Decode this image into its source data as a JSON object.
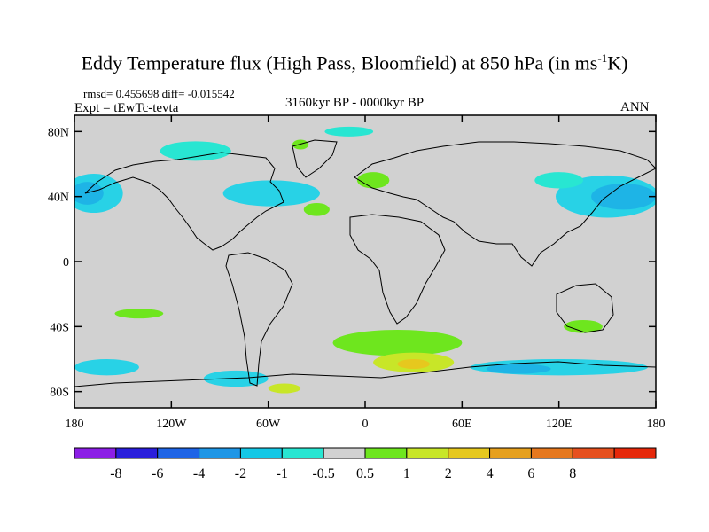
{
  "title": "Eddy Temperature flux (High Pass, Bloomfield) at 850 hPa (in ms",
  "title_sup": "-1",
  "title_end": "K)",
  "rmsd_text": "rmsd= 0.455698 diff= -0.015542",
  "expt_text": "Expt = tEwTc-tevta",
  "period_text": "3160kyr BP - 0000kyr BP",
  "season_text": "ANN",
  "map": {
    "lon_range": [
      -180,
      180
    ],
    "lat_range": [
      -90,
      90
    ],
    "lat_ticks": [
      {
        "lat": 80,
        "label": "80N"
      },
      {
        "lat": 40,
        "label": "40N"
      },
      {
        "lat": 0,
        "label": "0"
      },
      {
        "lat": -40,
        "label": "40S"
      },
      {
        "lat": -80,
        "label": "80S"
      }
    ],
    "lon_ticks": [
      {
        "lon": -180,
        "label": "180"
      },
      {
        "lon": -120,
        "label": "120W"
      },
      {
        "lon": -60,
        "label": "60W"
      },
      {
        "lon": 0,
        "label": "0"
      },
      {
        "lon": 60,
        "label": "60E"
      },
      {
        "lon": 120,
        "label": "120E"
      },
      {
        "lon": 180,
        "label": "180"
      }
    ],
    "background_color": "#d1d1d1"
  },
  "colorbar": {
    "colors": [
      "#8c1ee6",
      "#2a1edc",
      "#1e64e6",
      "#1e96e6",
      "#14c8e6",
      "#28e6d2",
      "#d1d1d1",
      "#6ee61e",
      "#c8e628",
      "#e6c81e",
      "#e6a01e",
      "#e6781e",
      "#e6501e",
      "#e6280a"
    ],
    "labels": [
      "-8",
      "-6",
      "-4",
      "-2",
      "-1",
      "-0.5",
      "0.5",
      "1",
      "2",
      "4",
      "6",
      "8"
    ]
  },
  "anomalies": [
    {
      "name": "north-pacific-negative",
      "color": "#28d2e6",
      "lon": -168,
      "lat": 42,
      "rlon": 18,
      "rlat": 12
    },
    {
      "name": "north-pacific-core",
      "color": "#1eb4e6",
      "lon": -172,
      "lat": 42,
      "rlon": 10,
      "rlat": 7
    },
    {
      "name": "north-america-negative",
      "color": "#28e6d2",
      "lon": -105,
      "lat": 68,
      "rlon": 22,
      "rlat": 6
    },
    {
      "name": "north-atlantic-negative",
      "color": "#28d2e6",
      "lon": -58,
      "lat": 42,
      "rlon": 30,
      "rlat": 8
    },
    {
      "name": "nw-pacific-negative",
      "color": "#28d2e6",
      "lon": 150,
      "lat": 40,
      "rlon": 32,
      "rlat": 13
    },
    {
      "name": "nw-pacific-core",
      "color": "#1eb4e6",
      "lon": 160,
      "lat": 40,
      "rlon": 20,
      "rlat": 8
    },
    {
      "name": "north-siberia-negative",
      "color": "#28e6d2",
      "lon": 120,
      "lat": 50,
      "rlon": 15,
      "rlat": 5
    },
    {
      "name": "arctic-negative",
      "color": "#28e6d2",
      "lon": -10,
      "lat": 80,
      "rlon": 15,
      "rlat": 3
    },
    {
      "name": "europe-positive",
      "color": "#6ee61e",
      "lon": 5,
      "lat": 50,
      "rlon": 10,
      "rlat": 5
    },
    {
      "name": "greenland-positive",
      "color": "#6ee61e",
      "lon": -40,
      "lat": 72,
      "rlon": 5,
      "rlat": 3
    },
    {
      "name": "mid-atlantic-positive",
      "color": "#6ee61e",
      "lon": -30,
      "lat": 32,
      "rlon": 8,
      "rlat": 4
    },
    {
      "name": "south-atlantic-positive",
      "color": "#6ee61e",
      "lon": 20,
      "lat": -50,
      "rlon": 40,
      "rlat": 8
    },
    {
      "name": "south-atlantic-yellow",
      "color": "#c8e628",
      "lon": 30,
      "lat": -62,
      "rlon": 25,
      "rlat": 6
    },
    {
      "name": "south-atlantic-orange",
      "color": "#e6c81e",
      "lon": 30,
      "lat": -63,
      "rlon": 10,
      "rlat": 3
    },
    {
      "name": "south-pacific-positive",
      "color": "#6ee61e",
      "lon": -140,
      "lat": -32,
      "rlon": 15,
      "rlat": 3
    },
    {
      "name": "australia-positive",
      "color": "#6ee61e",
      "lon": 135,
      "lat": -40,
      "rlon": 12,
      "rlat": 4
    },
    {
      "name": "southern-ocean-negative-1",
      "color": "#28d2e6",
      "lon": -160,
      "lat": -65,
      "rlon": 20,
      "rlat": 5
    },
    {
      "name": "southern-ocean-negative-2",
      "color": "#28d2e6",
      "lon": -80,
      "lat": -72,
      "rlon": 20,
      "rlat": 5
    },
    {
      "name": "southern-ocean-negative-3",
      "color": "#28d2e6",
      "lon": 120,
      "lat": -65,
      "rlon": 55,
      "rlat": 5
    },
    {
      "name": "southern-ocean-core",
      "color": "#1eb4e6",
      "lon": 95,
      "lat": -66,
      "rlon": 20,
      "rlat": 3
    },
    {
      "name": "antarctic-positive",
      "color": "#c8e628",
      "lon": -50,
      "lat": -78,
      "rlon": 10,
      "rlat": 3
    }
  ]
}
